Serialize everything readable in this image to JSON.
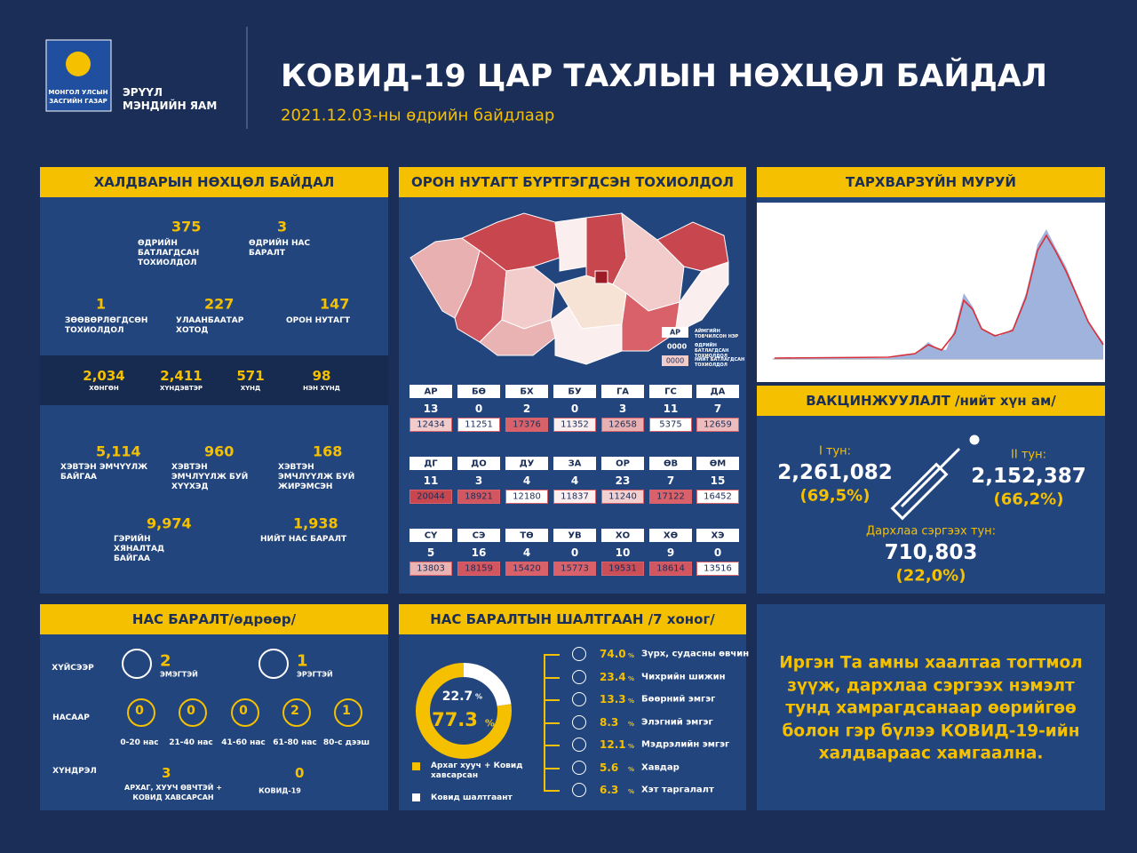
{
  "header": {
    "logo_lines": [
      "МОНГОЛ УЛСЫН",
      "ЗАСГИЙН ГАЗАР"
    ],
    "ministry_lines": [
      "ЭРҮҮЛ",
      "МЭНДИЙН ЯАМ"
    ],
    "title": "КОВИД-19 ЦАР ТАХЛЫН НӨХЦӨЛ БАЙДАЛ",
    "subtitle": "2021.12.03-ны өдрийн байдлаар"
  },
  "infection": {
    "title": "ХАЛДВАРЫН НӨХЦӨЛ БАЙДАЛ",
    "stats": [
      {
        "value": "375",
        "label": "ӨДРИЙН БАТЛАГДСАН ТОХИОЛДОЛ"
      },
      {
        "value": "3",
        "label": "ӨДРИЙН НАС БАРАЛТ"
      },
      {
        "value": "1",
        "label": "ЗӨӨВӨРЛӨГДСӨН ТОХИОЛДОЛ"
      },
      {
        "value": "227",
        "label": "УЛААНБААТАР ХОТОД"
      },
      {
        "value": "147",
        "label": "ОРОН НУТАГТ"
      }
    ],
    "severity": [
      {
        "value": "2,034",
        "label": "ХӨНГӨН"
      },
      {
        "value": "2,411",
        "label": "ХҮНДЭВТЭР"
      },
      {
        "value": "571",
        "label": "ХҮНД"
      },
      {
        "value": "98",
        "label": "НЭН ХҮНД"
      }
    ],
    "care": [
      {
        "value": "5,114",
        "label": "ХЭВТЭН ЭМЧҮҮЛЖ БАЙГАА"
      },
      {
        "value": "960",
        "label": "ХЭВТЭН ЭМЧЛҮҮЛЖ БУЙ ХҮҮХЭД"
      },
      {
        "value": "168",
        "label": "ХЭВТЭН ЭМЧЛҮҮЛЖ БУЙ ЖИРЭМСЭН"
      },
      {
        "value": "9,974",
        "label": "ГЭРИЙН ХЯНАЛТАД БАЙГАА"
      },
      {
        "value": "1,938",
        "label": "НИЙТ НАС БАРАЛТ"
      }
    ]
  },
  "regions": {
    "title": "ОРОН НУТАГТ БҮРТГЭГДСЭН ТОХИОЛДОЛ",
    "legend": {
      "code": "АР",
      "daily": "0000",
      "total": "0000",
      "code_note": "АЙМГИЙН ТОВЧИЛСОН НЭР",
      "daily_note": "ӨДРИЙН БАТЛАГДСАН ТОХИОЛДОЛ",
      "total_note": "НИЙТ БАТЛАГДСАН ТОХИОЛДОЛ"
    },
    "provinces": [
      {
        "code": "АР",
        "daily": "13",
        "total": "12434",
        "color": "#f2cbcb"
      },
      {
        "code": "БӨ",
        "daily": "0",
        "total": "11251",
        "color": "#ffffff"
      },
      {
        "code": "БХ",
        "daily": "2",
        "total": "17376",
        "color": "#d9626a"
      },
      {
        "code": "БУ",
        "daily": "0",
        "total": "11352",
        "color": "#fbeeee"
      },
      {
        "code": "ГА",
        "daily": "3",
        "total": "12658",
        "color": "#e8b0b0"
      },
      {
        "code": "ГС",
        "daily": "11",
        "total": "5375",
        "color": "#ffffff"
      },
      {
        "code": "ДА",
        "daily": "7",
        "total": "12659",
        "color": "#edbcbc"
      },
      {
        "code": "ДГ",
        "daily": "11",
        "total": "20044",
        "color": "#c8474f"
      },
      {
        "code": "ДО",
        "daily": "3",
        "total": "18921",
        "color": "#d25660"
      },
      {
        "code": "ДУ",
        "daily": "4",
        "total": "12180",
        "color": "#ffffff"
      },
      {
        "code": "ЗА",
        "daily": "4",
        "total": "11837",
        "color": "#fbeeee"
      },
      {
        "code": "ОР",
        "daily": "23",
        "total": "11240",
        "color": "#f2d0d0"
      },
      {
        "code": "ӨВ",
        "daily": "7",
        "total": "17122",
        "color": "#d9626a"
      },
      {
        "code": "ӨМ",
        "daily": "15",
        "total": "16452",
        "color": "#ffffff"
      },
      {
        "code": "СҮ",
        "daily": "5",
        "total": "13803",
        "color": "#eab3b3"
      },
      {
        "code": "СЭ",
        "daily": "16",
        "total": "18159",
        "color": "#d25660"
      },
      {
        "code": "ТӨ",
        "daily": "4",
        "total": "15420",
        "color": "#d9626a"
      },
      {
        "code": "УВ",
        "daily": "0",
        "total": "15773",
        "color": "#d9626a"
      },
      {
        "code": "ХО",
        "daily": "10",
        "total": "19531",
        "color": "#cc4e57"
      },
      {
        "code": "ХӨ",
        "daily": "9",
        "total": "18614",
        "color": "#d25660"
      },
      {
        "code": "ХЭ",
        "daily": "0",
        "total": "13516",
        "color": "#ffffff"
      }
    ]
  },
  "curve": {
    "title": "ТАРХВАРЗҮЙН МУРУЙ"
  },
  "vaccine": {
    "title": "ВАКЦИНЖУУЛАЛТ /нийт хүн ам/",
    "doses": [
      {
        "label": "I тун:",
        "value": "2,261,082",
        "pct": "(69,5%)"
      },
      {
        "label": "II тун:",
        "value": "2,152,387",
        "pct": "(66,2%)"
      },
      {
        "label": "Дархлаа сэргээх тун:",
        "value": "710,803",
        "pct": "(22,0%)"
      }
    ]
  },
  "deaths": {
    "title": "НАС БАРАЛТ/өдрөөр/",
    "by_sex": {
      "label": "ХҮЙСЭЭР",
      "items": [
        {
          "value": "2",
          "label": "ЭМЭГТЭЙ"
        },
        {
          "value": "1",
          "label": "ЭРЭГТЭЙ"
        }
      ]
    },
    "by_age": {
      "label": "НАСААР",
      "items": [
        {
          "value": "0",
          "label": "0-20 нас"
        },
        {
          "value": "0",
          "label": "21-40 нас"
        },
        {
          "value": "0",
          "label": "41-60 нас"
        },
        {
          "value": "2",
          "label": "61-80 нас"
        },
        {
          "value": "1",
          "label": "80-с дээш"
        }
      ]
    },
    "by_condition": {
      "label": "ХҮНДРЭЛ",
      "items": [
        {
          "value": "3",
          "label": "АРХАГ, ХУУЧ ӨВЧТЭЙ + КОВИД ХАВСАРСАН"
        },
        {
          "value": "0",
          "label": "КОВИД-19"
        }
      ]
    }
  },
  "causes": {
    "title": "НАС БАРАЛТЫН ШАЛТГААН /7 хоног/",
    "donut": [
      {
        "value": 22.7,
        "label": "22.7",
        "unit": "%",
        "color": "#ffffff",
        "name": "Ковид шалтгаант"
      },
      {
        "value": 77.3,
        "label": "77.3",
        "unit": "%",
        "color": "#f5c000",
        "name": "Архаг хууч + Ковид хавсарсан"
      }
    ],
    "list": [
      {
        "pct": "74.0",
        "unit": "%",
        "label": "Зүрх, судасны өвчин"
      },
      {
        "pct": "23.4",
        "unit": "%",
        "label": "Чихрийн шижин"
      },
      {
        "pct": "13.3",
        "unit": "%",
        "label": "Бөөрний эмгэг"
      },
      {
        "pct": "8.3",
        "unit": "%",
        "label": "Элэгний эмгэг"
      },
      {
        "pct": "12.1",
        "unit": "%",
        "label": "Мэдрэлийн эмгэг"
      },
      {
        "pct": "5.6",
        "unit": "%",
        "label": "Хавдар"
      },
      {
        "pct": "6.3",
        "unit": "%",
        "label": "Хэт таргалалт"
      }
    ]
  },
  "message": {
    "lines": [
      "Иргэн Та амны хаалтаа тогтмол",
      "зүүж, дархлаа сэргээх нэмэлт",
      "тунд хамрагдсанаар өөрийгөө",
      "болон гэр бүлээ КОВИД-19-ийн",
      "халдвараас хамгаална."
    ]
  }
}
